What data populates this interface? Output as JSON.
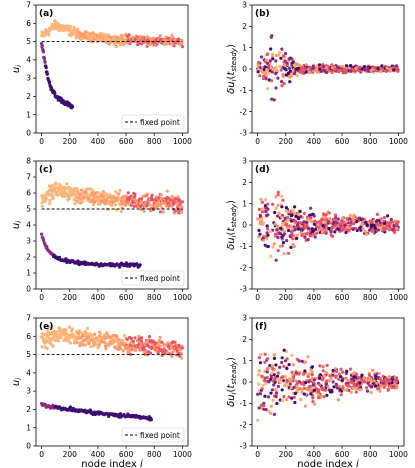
{
  "figure": {
    "colors": {
      "dark": "#3b0f70",
      "mid": "#8c2981",
      "warm": "#e6546a",
      "light": "#fb9a6a",
      "lighter": "#fdb57a",
      "fixed_point_line": "#000000"
    }
  },
  "chart_data": [
    {
      "panel": "(a)",
      "type": "scatter",
      "ylabel": "u_i",
      "xlabel": "",
      "xlim": [
        -40,
        1040
      ],
      "ylim": [
        0,
        7
      ],
      "xticks": [
        "0",
        "200",
        "400",
        "600",
        "800",
        "1000"
      ],
      "yticks": [
        "0",
        "1",
        "2",
        "3",
        "4",
        "5",
        "6",
        "7"
      ],
      "fixed_point": 5,
      "legend": {
        "label": "fixed point",
        "position": "lower-right"
      },
      "series": [
        {
          "x": [
            0,
            100,
            200,
            300,
            400,
            500,
            600,
            700,
            800,
            900,
            1000
          ],
          "y": [
            5.3,
            5.9,
            5.6,
            5.3,
            5.2,
            5.1,
            5.1,
            5.1,
            5.0,
            5.05,
            5.0
          ]
        },
        {
          "x": [
            0,
            20,
            40,
            60,
            80,
            100,
            140,
            180,
            220
          ],
          "y": [
            4.9,
            4.0,
            3.2,
            2.6,
            2.3,
            2.0,
            1.8,
            1.6,
            1.4
          ]
        }
      ]
    },
    {
      "panel": "(b)",
      "type": "scatter",
      "ylabel": "δu_i(t_steady)",
      "xlabel": "",
      "xlim": [
        -40,
        1040
      ],
      "ylim": [
        -3,
        3
      ],
      "xticks": [
        "0",
        "200",
        "400",
        "600",
        "800",
        "1000"
      ],
      "yticks": [
        "-3",
        "-2",
        "-1",
        "0",
        "1",
        "2",
        "3"
      ],
      "envelope": {
        "x": [
          0,
          60,
          110,
          150,
          200,
          250,
          300,
          400,
          600,
          800,
          1000
        ],
        "y": [
          0.3,
          0.9,
          2.0,
          1.5,
          0.8,
          0.5,
          0.3,
          0.2,
          0.18,
          0.15,
          0.15
        ]
      }
    },
    {
      "panel": "(c)",
      "type": "scatter",
      "ylabel": "u_i",
      "xlabel": "",
      "xlim": [
        -40,
        1040
      ],
      "ylim": [
        0,
        8
      ],
      "xticks": [
        "0",
        "200",
        "400",
        "600",
        "800",
        "1000"
      ],
      "yticks": [
        "0",
        "1",
        "2",
        "3",
        "4",
        "5",
        "6",
        "7",
        "8"
      ],
      "fixed_point": 5,
      "legend": {
        "label": "fixed point",
        "position": "lower-right"
      },
      "series": [
        {
          "x": [
            0,
            100,
            200,
            300,
            400,
            500,
            600,
            700,
            800,
            900,
            1000
          ],
          "y": [
            5.5,
            6.2,
            6.0,
            5.8,
            5.7,
            5.6,
            5.5,
            5.5,
            5.4,
            5.4,
            5.3
          ]
        },
        {
          "x": [
            0,
            20,
            40,
            60,
            100,
            150,
            200,
            300,
            400,
            500,
            700
          ],
          "y": [
            3.3,
            2.9,
            2.5,
            2.3,
            2.0,
            1.8,
            1.7,
            1.6,
            1.55,
            1.5,
            1.5
          ]
        }
      ]
    },
    {
      "panel": "(d)",
      "type": "scatter",
      "ylabel": "δu_i(t_steady)",
      "xlabel": "",
      "xlim": [
        -40,
        1040
      ],
      "ylim": [
        -3,
        3
      ],
      "xticks": [
        "0",
        "200",
        "400",
        "600",
        "800",
        "1000"
      ],
      "yticks": [
        "-3",
        "-2",
        "-1",
        "0",
        "1",
        "2",
        "3"
      ],
      "envelope": {
        "x": [
          0,
          60,
          120,
          200,
          300,
          400,
          500,
          600,
          800,
          1000
        ],
        "y": [
          1.3,
          1.8,
          2.0,
          1.5,
          1.0,
          0.8,
          0.6,
          0.5,
          0.45,
          0.4
        ]
      }
    },
    {
      "panel": "(e)",
      "type": "scatter",
      "ylabel": "u_i",
      "xlabel": "node index i",
      "xlim": [
        -40,
        1040
      ],
      "ylim": [
        0,
        7
      ],
      "xticks": [
        "0",
        "200",
        "400",
        "600",
        "800",
        "1000"
      ],
      "yticks": [
        "0",
        "1",
        "2",
        "3",
        "4",
        "5",
        "6",
        "7"
      ],
      "fixed_point": 5,
      "legend": {
        "label": "fixed point",
        "position": "lower-right"
      },
      "series": [
        {
          "x": [
            0,
            100,
            200,
            300,
            400,
            500,
            600,
            700,
            800,
            900,
            1000
          ],
          "y": [
            5.8,
            6.1,
            6.0,
            5.9,
            5.8,
            5.7,
            5.6,
            5.5,
            5.4,
            5.3,
            5.3
          ]
        },
        {
          "x": [
            0,
            100,
            200,
            300,
            400,
            500,
            600,
            700,
            780
          ],
          "y": [
            2.3,
            2.1,
            2.0,
            1.9,
            1.8,
            1.7,
            1.65,
            1.6,
            1.5
          ]
        }
      ]
    },
    {
      "panel": "(f)",
      "type": "scatter",
      "ylabel": "δu_i(t_steady)",
      "xlabel": "node index i",
      "xlim": [
        -40,
        1040
      ],
      "ylim": [
        -3,
        3
      ],
      "xticks": [
        "0",
        "200",
        "400",
        "600",
        "800",
        "1000"
      ],
      "yticks": [
        "-3",
        "-2",
        "-1",
        "0",
        "1",
        "2",
        "3"
      ],
      "envelope": {
        "x": [
          0,
          100,
          200,
          300,
          400,
          500,
          600,
          800,
          1000
        ],
        "y": [
          2.2,
          1.9,
          1.6,
          1.3,
          1.1,
          0.9,
          0.7,
          0.55,
          0.45
        ]
      }
    }
  ]
}
